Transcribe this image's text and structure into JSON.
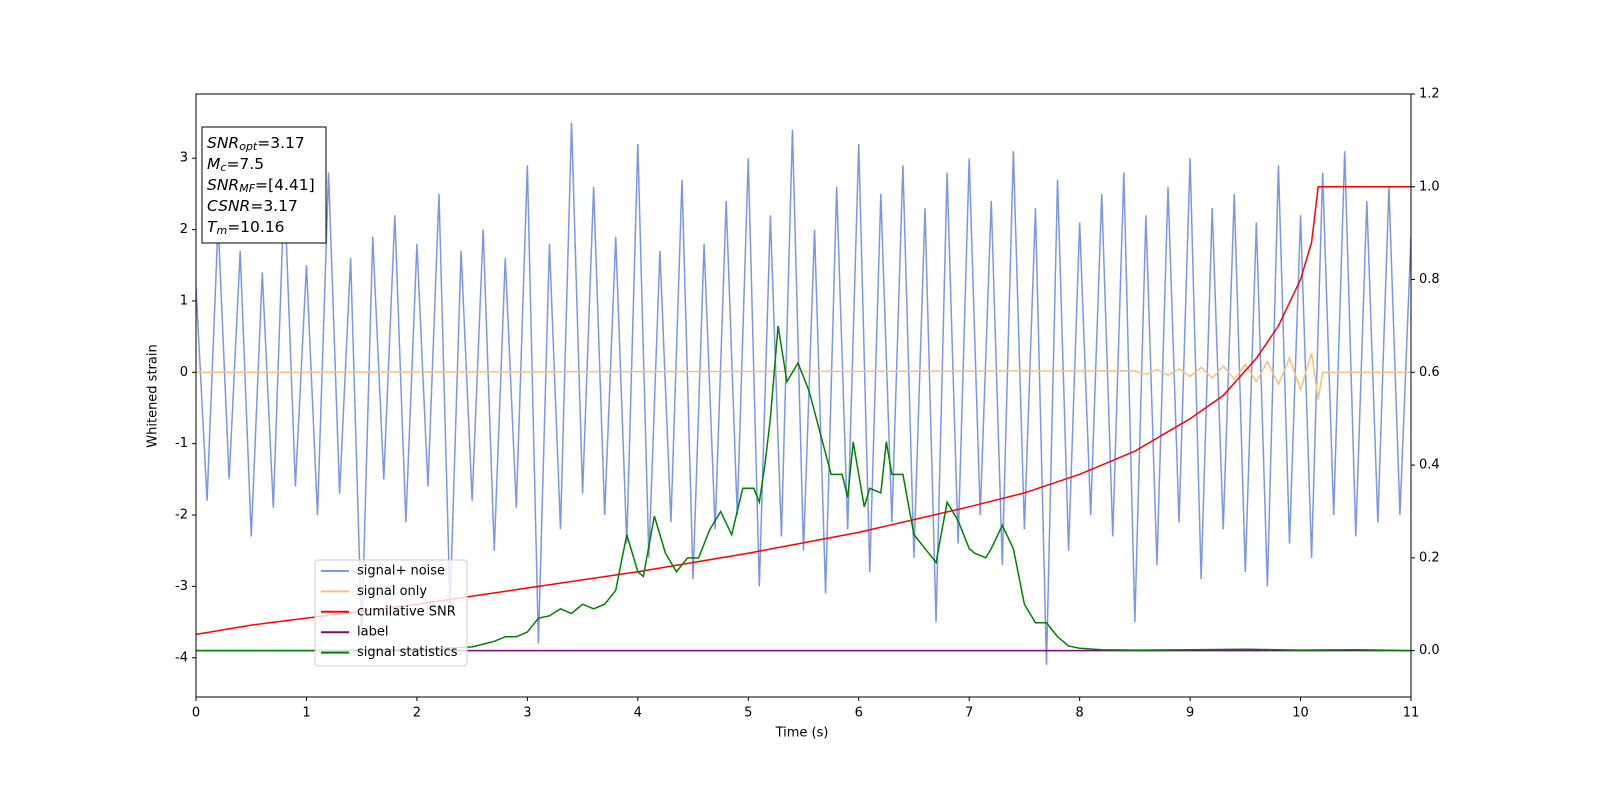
{
  "chart_data": {
    "type": "line",
    "xlabel": "Time (s)",
    "ylabel": "Whitened strain",
    "xlim": [
      0,
      11
    ],
    "xticks": [
      0,
      1,
      2,
      3,
      4,
      5,
      6,
      7,
      8,
      9,
      10,
      11
    ],
    "ylim": [
      -4.55,
      3.9
    ],
    "yticks": [
      -4,
      -3,
      -2,
      -1,
      0,
      1,
      2,
      3
    ],
    "y2lim": [
      -0.1,
      1.2
    ],
    "y2ticks": [
      {
        "value": 0,
        "label": "0.0"
      },
      {
        "value": 0.2,
        "label": "0.2"
      },
      {
        "value": 0.4,
        "label": "0.4"
      },
      {
        "value": 0.6,
        "label": "0.6"
      },
      {
        "value": 0.8,
        "label": "0.8"
      },
      {
        "value": 1.0,
        "label": "1.0"
      },
      {
        "value": 1.2,
        "label": "1.2"
      }
    ],
    "legend": "lower left",
    "annotations": [
      {
        "symbol": "SNR",
        "sub": "opt",
        "value": "=3.17"
      },
      {
        "symbol": "M",
        "sub": "c",
        "value": "=7.5"
      },
      {
        "symbol": "SNR",
        "sub": "MF",
        "value": "=[4.41]"
      },
      {
        "symbol": "CSNR",
        "value": "=3.17"
      },
      {
        "symbol": "T",
        "sub": "m",
        "value": "=10.16"
      }
    ],
    "series": [
      {
        "name": "signal+ noise",
        "color": "#7b96e6",
        "x": [
          0,
          0.1,
          0.2,
          0.3,
          0.4,
          0.5,
          0.6,
          0.7,
          0.8,
          0.9,
          1,
          1.1,
          1.2,
          1.3,
          1.4,
          1.5,
          1.6,
          1.7,
          1.8,
          1.9,
          2,
          2.1,
          2.2,
          2.3,
          2.4,
          2.5,
          2.6,
          2.7,
          2.8,
          2.9,
          3,
          3.1,
          3.2,
          3.3,
          3.4,
          3.5,
          3.6,
          3.7,
          3.8,
          3.9,
          4,
          4.1,
          4.2,
          4.3,
          4.4,
          4.5,
          4.6,
          4.7,
          4.8,
          4.9,
          5,
          5.1,
          5.2,
          5.3,
          5.4,
          5.5,
          5.6,
          5.7,
          5.8,
          5.9,
          6,
          6.1,
          6.2,
          6.3,
          6.4,
          6.5,
          6.6,
          6.7,
          6.8,
          6.9,
          7,
          7.1,
          7.2,
          7.3,
          7.4,
          7.5,
          7.6,
          7.7,
          7.8,
          7.9,
          8,
          8.1,
          8.2,
          8.3,
          8.4,
          8.5,
          8.6,
          8.7,
          8.8,
          8.9,
          9,
          9.1,
          9.2,
          9.3,
          9.4,
          9.5,
          9.6,
          9.7,
          9.8,
          9.9,
          10,
          10.1,
          10.2,
          10.3,
          10.4,
          10.5,
          10.6,
          10.7,
          10.8,
          10.9,
          11
        ],
        "values": [
          1.2,
          -1.8,
          2.1,
          -1.5,
          1.7,
          -2.3,
          1.4,
          -1.9,
          2.6,
          -1.6,
          1.5,
          -2.0,
          2.8,
          -1.7,
          1.6,
          -3.7,
          1.9,
          -1.5,
          2.2,
          -2.1,
          1.8,
          -1.6,
          2.5,
          -3.3,
          1.7,
          -1.8,
          2.0,
          -2.5,
          1.6,
          -1.9,
          2.9,
          -3.8,
          1.8,
          -2.2,
          3.5,
          -1.7,
          2.6,
          -2.0,
          1.9,
          -2.4,
          3.2,
          -2.6,
          1.7,
          -2.1,
          2.7,
          -2.9,
          1.8,
          -2.2,
          2.4,
          -2.0,
          3.0,
          -3.0,
          2.2,
          -2.3,
          3.4,
          -2.5,
          2.0,
          -3.1,
          2.6,
          -2.2,
          3.2,
          -2.8,
          2.5,
          -2.1,
          2.9,
          -2.6,
          2.3,
          -3.5,
          2.8,
          -2.4,
          3.0,
          -2.0,
          2.4,
          -2.7,
          3.1,
          -2.2,
          2.3,
          -4.1,
          2.7,
          -2.5,
          2.1,
          -2.0,
          2.5,
          -2.3,
          2.8,
          -3.5,
          2.2,
          -2.7,
          2.6,
          -2.1,
          3.0,
          -2.9,
          2.3,
          -2.2,
          2.5,
          -2.8,
          2.1,
          -3.0,
          2.9,
          -2.4,
          2.2,
          -2.6,
          2.8,
          -2.0,
          3.1,
          -2.3,
          2.4,
          -2.1,
          2.6,
          -2.0,
          1.9
        ]
      },
      {
        "name": "signal only",
        "color": "#f5c27a",
        "x": [
          0,
          8.5,
          8.6,
          8.7,
          8.8,
          8.9,
          9.0,
          9.1,
          9.2,
          9.3,
          9.4,
          9.5,
          9.6,
          9.7,
          9.8,
          9.9,
          10.0,
          10.1,
          10.16,
          10.2,
          11
        ],
        "values": [
          0,
          0.02,
          -0.03,
          0.04,
          -0.04,
          0.05,
          -0.06,
          0.07,
          -0.08,
          0.09,
          -0.1,
          0.11,
          -0.13,
          0.15,
          -0.17,
          0.2,
          -0.24,
          0.27,
          -0.38,
          0,
          0
        ]
      },
      {
        "name": "cumilative SNR",
        "color": "#ff0000",
        "axis": "y2",
        "x": [
          0,
          0.5,
          1,
          2,
          3,
          4,
          5,
          6,
          7,
          7.5,
          8,
          8.5,
          9,
          9.3,
          9.6,
          9.8,
          10,
          10.1,
          10.16,
          11
        ],
        "values": [
          0.035,
          0.055,
          0.07,
          0.1,
          0.135,
          0.17,
          0.21,
          0.255,
          0.31,
          0.34,
          0.38,
          0.43,
          0.5,
          0.55,
          0.63,
          0.7,
          0.8,
          0.88,
          1.0,
          1.0
        ]
      },
      {
        "name": "label",
        "color": "#800080",
        "axis": "y2",
        "x": [
          0,
          11
        ],
        "values": [
          0,
          0
        ]
      },
      {
        "name": "signal statistics",
        "color": "#008000",
        "axis": "y2",
        "x": [
          0,
          1,
          2,
          2.5,
          2.7,
          2.8,
          2.9,
          3.0,
          3.1,
          3.2,
          3.3,
          3.4,
          3.5,
          3.6,
          3.7,
          3.8,
          3.9,
          4.0,
          4.05,
          4.15,
          4.25,
          4.35,
          4.45,
          4.55,
          4.65,
          4.75,
          4.85,
          4.95,
          5.05,
          5.1,
          5.15,
          5.2,
          5.27,
          5.35,
          5.45,
          5.55,
          5.65,
          5.75,
          5.85,
          5.9,
          5.95,
          6.05,
          6.1,
          6.2,
          6.25,
          6.3,
          6.4,
          6.5,
          6.6,
          6.7,
          6.8,
          6.9,
          7.0,
          7.05,
          7.15,
          7.2,
          7.3,
          7.4,
          7.5,
          7.6,
          7.7,
          7.8,
          7.9,
          8.0,
          8.2,
          8.5,
          9.0,
          9.5,
          10.0,
          10.5,
          11
        ],
        "values": [
          0,
          0,
          0.002,
          0.008,
          0.02,
          0.03,
          0.03,
          0.04,
          0.07,
          0.075,
          0.09,
          0.08,
          0.1,
          0.09,
          0.1,
          0.13,
          0.25,
          0.17,
          0.16,
          0.29,
          0.21,
          0.17,
          0.2,
          0.2,
          0.26,
          0.3,
          0.25,
          0.35,
          0.35,
          0.32,
          0.4,
          0.5,
          0.7,
          0.58,
          0.62,
          0.56,
          0.47,
          0.38,
          0.38,
          0.33,
          0.45,
          0.31,
          0.35,
          0.34,
          0.45,
          0.38,
          0.38,
          0.25,
          0.22,
          0.19,
          0.32,
          0.28,
          0.22,
          0.21,
          0.2,
          0.22,
          0.27,
          0.22,
          0.1,
          0.06,
          0.06,
          0.03,
          0.01,
          0.005,
          0.002,
          0.001,
          0.002,
          0.003,
          0.001,
          0.002,
          0
        ]
      }
    ]
  }
}
